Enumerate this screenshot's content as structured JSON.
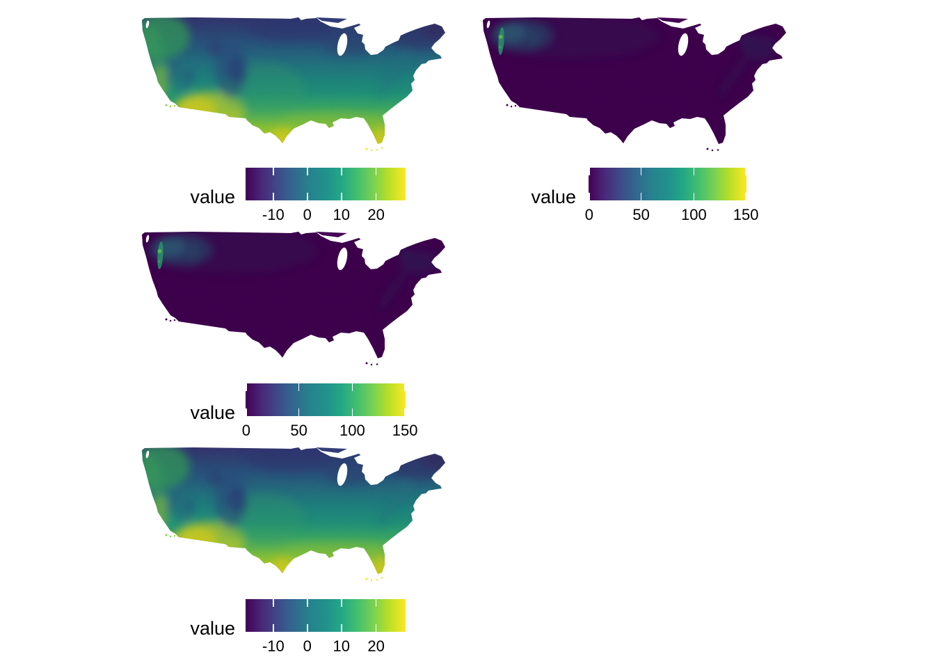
{
  "figure": {
    "type": "faceted raster map figure",
    "background": "#ffffff",
    "panel_count": 4,
    "geography": "contiguous United States"
  },
  "colors": {
    "viridis_stops": [
      "#440154",
      "#482878",
      "#3e4a89",
      "#31688e",
      "#26828e",
      "#21918c",
      "#22a884",
      "#44bf70",
      "#7ad151",
      "#bddf26",
      "#fde725"
    ],
    "text": "#000000",
    "tick_mark": "#ffffff",
    "no_data": "#ffffff"
  },
  "panels": [
    {
      "id": "top-left",
      "map_style": "full viridis gradient: dark blue north, green center, yellow south",
      "legend": {
        "title": "value",
        "ticks": [
          {
            "label": "-10",
            "f": 0.173
          },
          {
            "label": "0",
            "f": 0.386
          },
          {
            "label": "10",
            "f": 0.599
          },
          {
            "label": "20",
            "f": 0.816
          }
        ]
      }
    },
    {
      "id": "top-right",
      "map_style": "almost entirely dark purple (low values); teal-green patches in Pacific Northwest",
      "legend": {
        "title": "value",
        "ticks": [
          {
            "label": "0",
            "f": 0.004
          },
          {
            "label": "50",
            "f": 0.333
          },
          {
            "label": "100",
            "f": 0.667
          },
          {
            "label": "150",
            "f": 0.996
          }
        ]
      }
    },
    {
      "id": "middle-left",
      "map_style": "almost entirely dark purple (low values); teal-green patches in Pacific Northwest",
      "legend": {
        "title": "value",
        "ticks": [
          {
            "label": "0",
            "f": 0.004
          },
          {
            "label": "50",
            "f": 0.333
          },
          {
            "label": "100",
            "f": 0.667
          },
          {
            "label": "150",
            "f": 0.996
          }
        ]
      }
    },
    {
      "id": "bottom-left",
      "map_style": "full viridis gradient: dark blue north, green center, yellow south",
      "legend": {
        "title": "value",
        "ticks": [
          {
            "label": "-10",
            "f": 0.173
          },
          {
            "label": "0",
            "f": 0.386
          },
          {
            "label": "10",
            "f": 0.599
          },
          {
            "label": "20",
            "f": 0.816
          }
        ]
      }
    }
  ],
  "chart_data": [
    {
      "type": "heatmap",
      "panel": "top-left",
      "geography": "contiguous United States",
      "legend_title": "value",
      "colorscale": "viridis",
      "colorbar_tick_values": [
        -10,
        0,
        10,
        20
      ],
      "value_range_estimate": [
        -18,
        28
      ],
      "legend_position": "bottom-left of panel",
      "spatial_pattern": "high (yellow) values in south Florida, south Texas and the desert Southwest; low (dark blue/indigo) values across the northern plains, Rockies, Great Lakes states and northern New England; Great Lakes are white (no data)"
    },
    {
      "type": "heatmap",
      "panel": "top-right",
      "geography": "contiguous United States",
      "legend_title": "value",
      "colorscale": "viridis",
      "colorbar_tick_values": [
        0,
        50,
        100,
        150
      ],
      "value_range": [
        0,
        150
      ],
      "legend_position": "bottom-left of panel",
      "spatial_pattern": "near-zero (dark purple) values over almost the entire country; elevated teal/green values along the Pacific Northwest coast and Cascades; very faint lighter tinge in northern New England"
    },
    {
      "type": "heatmap",
      "panel": "middle-left",
      "geography": "contiguous United States",
      "legend_title": "value",
      "colorscale": "viridis",
      "colorbar_tick_values": [
        0,
        50,
        100,
        150
      ],
      "value_range": [
        0,
        150
      ],
      "legend_position": "bottom-left of panel",
      "spatial_pattern": "near-zero (dark purple) values over almost the entire country; elevated teal/green values along the Pacific Northwest coast and Cascades; very faint lighter tinge in northern New England"
    },
    {
      "type": "heatmap",
      "panel": "bottom-left",
      "geography": "contiguous United States",
      "legend_title": "value",
      "colorscale": "viridis",
      "colorbar_tick_values": [
        -10,
        0,
        10,
        20
      ],
      "value_range_estimate": [
        -18,
        28
      ],
      "legend_position": "bottom-left of panel",
      "spatial_pattern": "high (yellow) values in south Florida, south Texas and the desert Southwest; low (dark blue/indigo) values across the northern plains, Rockies, Great Lakes states and northern New England; Great Lakes are white (no data)"
    }
  ]
}
